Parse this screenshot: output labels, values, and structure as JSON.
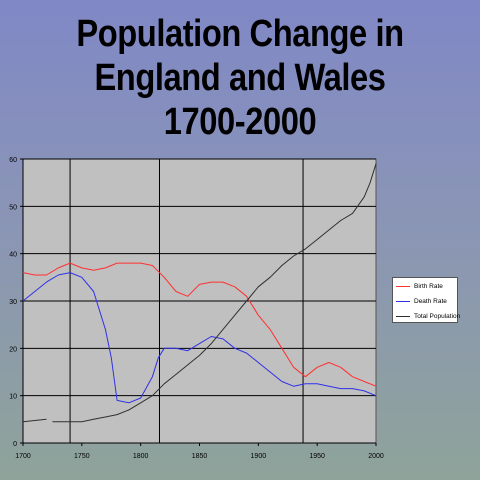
{
  "title_lines": [
    "Population Change in",
    "England and Wales",
    "1700-2000"
  ],
  "chart_data": {
    "type": "line",
    "title": "Population Change in England and Wales 1700-2000",
    "xlim": [
      1700,
      2000
    ],
    "ylim": [
      0,
      60
    ],
    "x_ticks": [
      1700,
      1750,
      1800,
      1850,
      1900,
      1950,
      2000
    ],
    "y_ticks": [
      0,
      10,
      20,
      30,
      40,
      50,
      60
    ],
    "vertical_gridlines_x": [
      1740,
      1816,
      1938
    ],
    "grid": true,
    "legend_position": "right",
    "colors": {
      "plot_background": "#c0c0c0",
      "grid": "#000000",
      "birth_rate": "#ff3030",
      "death_rate": "#3030e8",
      "total_population": "#303030"
    },
    "series": [
      {
        "name": "Birth Rate",
        "color": "#ff3030",
        "x": [
          1700,
          1710,
          1720,
          1730,
          1740,
          1750,
          1760,
          1770,
          1780,
          1790,
          1800,
          1810,
          1820,
          1830,
          1840,
          1850,
          1860,
          1870,
          1880,
          1890,
          1900,
          1910,
          1920,
          1930,
          1940,
          1950,
          1960,
          1970,
          1980,
          1990,
          2000
        ],
        "values": [
          36,
          35.5,
          35.5,
          37,
          38,
          37,
          36.5,
          37,
          38,
          38,
          38,
          37.5,
          35,
          32,
          31,
          33.5,
          34,
          34,
          33,
          31,
          27,
          24,
          20,
          16,
          14,
          16,
          17,
          16,
          14,
          13,
          12
        ]
      },
      {
        "name": "Death Rate",
        "color": "#3030e8",
        "x": [
          1700,
          1710,
          1720,
          1730,
          1740,
          1750,
          1760,
          1770,
          1775,
          1780,
          1790,
          1800,
          1810,
          1815,
          1820,
          1830,
          1840,
          1850,
          1860,
          1870,
          1880,
          1890,
          1900,
          1910,
          1920,
          1930,
          1940,
          1950,
          1960,
          1970,
          1980,
          1990,
          2000
        ],
        "values": [
          30,
          32,
          34,
          35.5,
          36,
          35,
          32,
          24,
          18,
          9,
          8.5,
          9.5,
          14,
          18,
          20,
          20,
          19.5,
          21,
          22.5,
          22,
          20,
          19,
          17,
          15,
          13,
          12,
          12.5,
          12.5,
          12,
          11.5,
          11.5,
          11,
          10
        ]
      },
      {
        "name": "Total Population",
        "color": "#303030",
        "x": [
          1700,
          1720,
          1725,
          1750,
          1760,
          1770,
          1780,
          1790,
          1800,
          1810,
          1820,
          1830,
          1840,
          1850,
          1860,
          1870,
          1880,
          1890,
          1900,
          1910,
          1920,
          1930,
          1940,
          1950,
          1960,
          1970,
          1980,
          1990,
          1995,
          2000
        ],
        "values": [
          4.5,
          5,
          4.5,
          4.5,
          5,
          5.5,
          6,
          7,
          8.5,
          10,
          12.5,
          14.5,
          16.5,
          18.5,
          21,
          24,
          27,
          30,
          33,
          35,
          37.5,
          39.5,
          41,
          43,
          45,
          47,
          48.5,
          52,
          55,
          59
        ],
        "gaps_after_x": [
          1720
        ]
      }
    ]
  }
}
